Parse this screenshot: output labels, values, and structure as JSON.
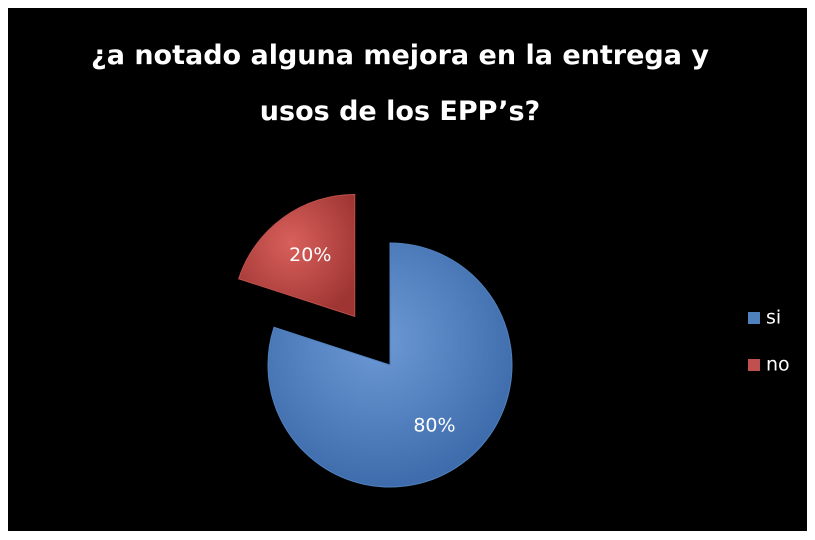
{
  "chart_data": {
    "type": "pie",
    "title": "¿a notado alguna mejora en la entrega y usos de los EPP’s?",
    "categories": [
      "si",
      "no"
    ],
    "values": [
      80,
      20
    ],
    "value_labels": [
      "80%",
      "20%"
    ],
    "colors": [
      "#4f81bd",
      "#c0504d"
    ],
    "exploded": [
      false,
      true
    ],
    "legend": "right"
  }
}
